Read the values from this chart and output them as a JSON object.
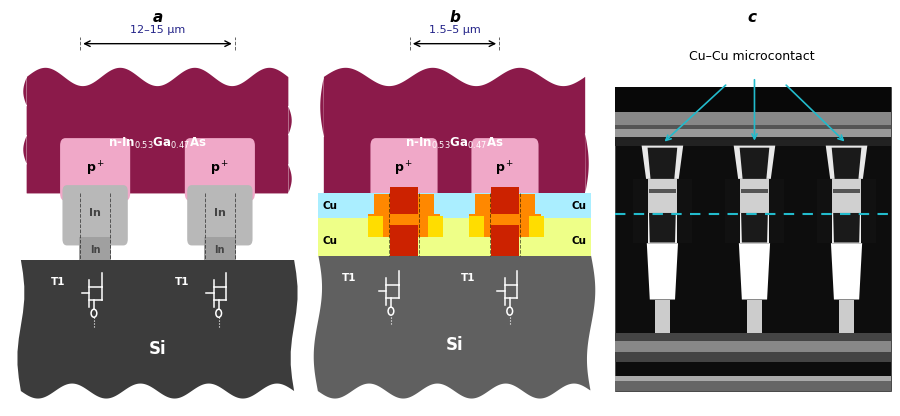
{
  "bg_color": "#ffffff",
  "maroon": "#8B1A4A",
  "pink": "#F0A8C8",
  "gray_light": "#B8B8B8",
  "gray_mid": "#A0A0A0",
  "gray_dark": "#3C3C3C",
  "gray_si_b": "#606060",
  "cyan_bg": "#AAEEFF",
  "yellow_bg": "#EEFF88",
  "orange_bright": "#FF8800",
  "orange_dark": "#CC2200",
  "yellow_cu": "#FFDD00",
  "label_a": "a",
  "label_b": "b",
  "label_c": "c",
  "dim_a": "12–15 μm",
  "dim_b": "1.5–5 μm",
  "si_label": "Si",
  "t1_label": "T1",
  "cu_label": "Cu",
  "in_label": "In",
  "cu_cu_label": "Cu–Cu microcontact",
  "arrow_color": "#22BBCC",
  "dim_color": "#222288"
}
